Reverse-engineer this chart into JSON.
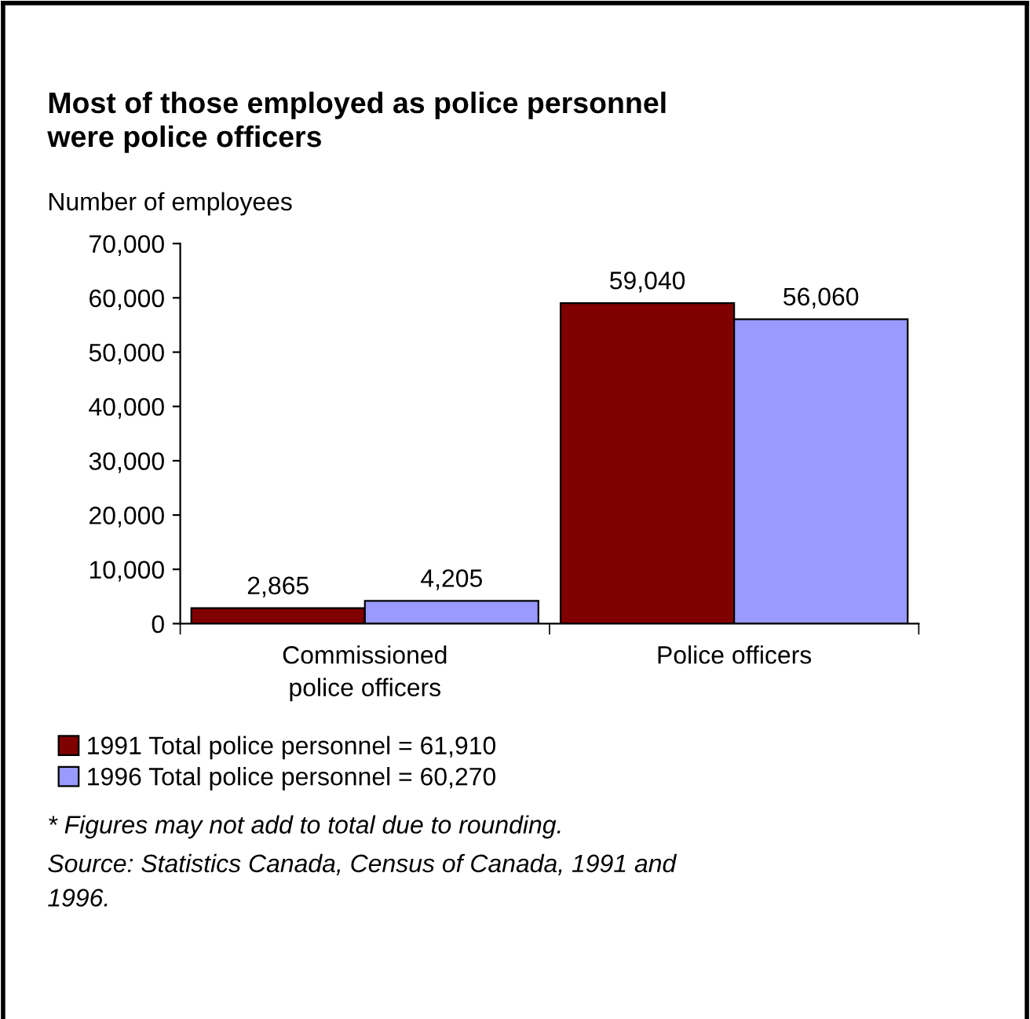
{
  "chart_data": {
    "type": "bar",
    "title": "Most of those employed as police personnel were police officers",
    "ylabel": "Number of employees",
    "categories": [
      "Commissioned police officers",
      "Police officers"
    ],
    "series": [
      {
        "name": "1991 Total police personnel = 61,910",
        "color": "#800000",
        "values": [
          2865,
          59040
        ],
        "value_labels": [
          "2,865",
          "59,040"
        ]
      },
      {
        "name": "1996 Total police personnel = 60,270",
        "color": "#9999ff",
        "values": [
          4205,
          56060
        ],
        "value_labels": [
          "4,205",
          "56,060"
        ]
      }
    ],
    "ylim": [
      0,
      70000
    ],
    "yticks": [
      {
        "value": 0,
        "label": "0"
      },
      {
        "value": 10000,
        "label": "10,000"
      },
      {
        "value": 20000,
        "label": "20,000"
      },
      {
        "value": 30000,
        "label": "30,000"
      },
      {
        "value": 40000,
        "label": "40,000"
      },
      {
        "value": 50000,
        "label": "50,000"
      },
      {
        "value": 60000,
        "label": "60,000"
      },
      {
        "value": 70000,
        "label": "70,000"
      }
    ],
    "grid": false,
    "legend": "bottom",
    "annotations": [
      "* Figures may not add to total due to rounding.",
      "Source: Statistics Canada, Census of Canada, 1991 and 1996."
    ]
  }
}
